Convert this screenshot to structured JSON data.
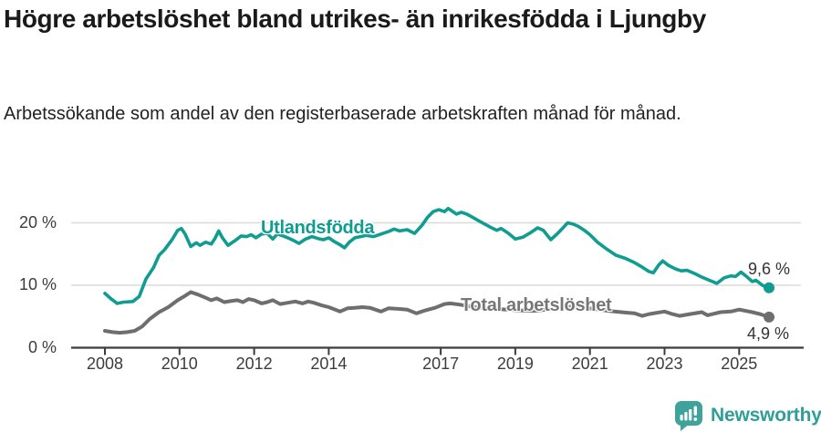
{
  "header": {
    "title": "Högre arbetslöshet bland utrikes- än inrikesfödda i Ljungby",
    "subtitle": "Arbetssökande som andel av den registerbaserade arbetskraften månad för månad."
  },
  "colors": {
    "accent_teal": "#0f9c91",
    "line_gray": "#6e6e6e",
    "series_label_gray": "#767676",
    "axis": "#3c3c3c",
    "grid": "#dadada",
    "title_text": "#1a1a1a",
    "logo_teal": "#2f9e96"
  },
  "branding": {
    "logo_text": "Newsworthy",
    "logo_icon": "speech-bubble-with-bar-chart-and-exclamation"
  },
  "chart_data": {
    "type": "line",
    "title": "Högre arbetslöshet bland utrikes- än inrikesfödda i Ljungby",
    "subtitle": "Arbetssökande som andel av den registerbaserade arbetskraften månad för månad.",
    "xlabel": "",
    "ylabel": "",
    "x_unit": "year",
    "y_unit": "%",
    "xlim": [
      2007.1,
      2026.65
    ],
    "ylim": [
      0,
      23
    ],
    "grid": "horizontal",
    "y_ticks": [
      0,
      10,
      20
    ],
    "y_tick_labels": [
      "0 %",
      "10 %",
      "20 %"
    ],
    "x_ticks": [
      2008,
      2010,
      2012,
      2014,
      2017,
      2019,
      2021,
      2023,
      2025
    ],
    "x_tick_labels": [
      "2008",
      "2010",
      "2012",
      "2014",
      "2017",
      "2019",
      "2021",
      "2023",
      "2025"
    ],
    "series": [
      {
        "name": "Utlandsfödda",
        "color": "#0f9c91",
        "width": 3.6,
        "end_label": "9,6 %",
        "end_value": 9.6,
        "points": [
          [
            2008.0,
            8.7
          ],
          [
            2008.17,
            7.8
          ],
          [
            2008.33,
            7.1
          ],
          [
            2008.5,
            7.3
          ],
          [
            2008.75,
            7.4
          ],
          [
            2008.92,
            8.2
          ],
          [
            2009.1,
            11.0
          ],
          [
            2009.3,
            12.8
          ],
          [
            2009.45,
            14.8
          ],
          [
            2009.6,
            15.7
          ],
          [
            2009.8,
            17.3
          ],
          [
            2009.95,
            18.8
          ],
          [
            2010.05,
            19.1
          ],
          [
            2010.15,
            18.2
          ],
          [
            2010.3,
            16.2
          ],
          [
            2010.45,
            16.8
          ],
          [
            2010.55,
            16.4
          ],
          [
            2010.7,
            16.9
          ],
          [
            2010.85,
            16.6
          ],
          [
            2010.95,
            17.5
          ],
          [
            2011.05,
            18.7
          ],
          [
            2011.15,
            17.6
          ],
          [
            2011.3,
            16.4
          ],
          [
            2011.5,
            17.2
          ],
          [
            2011.65,
            17.9
          ],
          [
            2011.8,
            17.8
          ],
          [
            2011.92,
            18.1
          ],
          [
            2012.05,
            17.6
          ],
          [
            2012.2,
            18.2
          ],
          [
            2012.35,
            18.3
          ],
          [
            2012.5,
            17.4
          ],
          [
            2012.62,
            18.2
          ],
          [
            2012.78,
            17.9
          ],
          [
            2012.9,
            17.6
          ],
          [
            2013.05,
            17.2
          ],
          [
            2013.2,
            16.7
          ],
          [
            2013.38,
            17.4
          ],
          [
            2013.55,
            17.8
          ],
          [
            2013.7,
            17.5
          ],
          [
            2013.85,
            17.3
          ],
          [
            2014.0,
            17.6
          ],
          [
            2014.15,
            17.0
          ],
          [
            2014.3,
            16.5
          ],
          [
            2014.42,
            16.0
          ],
          [
            2014.55,
            16.9
          ],
          [
            2014.7,
            17.6
          ],
          [
            2014.85,
            17.8
          ],
          [
            2015.0,
            18.0
          ],
          [
            2015.2,
            17.8
          ],
          [
            2015.4,
            18.2
          ],
          [
            2015.6,
            18.6
          ],
          [
            2015.75,
            19.0
          ],
          [
            2015.9,
            18.7
          ],
          [
            2016.1,
            18.9
          ],
          [
            2016.3,
            18.3
          ],
          [
            2016.5,
            19.6
          ],
          [
            2016.65,
            20.9
          ],
          [
            2016.8,
            21.8
          ],
          [
            2016.95,
            22.1
          ],
          [
            2017.1,
            21.8
          ],
          [
            2017.2,
            22.3
          ],
          [
            2017.3,
            21.9
          ],
          [
            2017.42,
            21.4
          ],
          [
            2017.55,
            21.7
          ],
          [
            2017.7,
            21.4
          ],
          [
            2017.85,
            20.9
          ],
          [
            2018.0,
            20.4
          ],
          [
            2018.15,
            19.9
          ],
          [
            2018.3,
            19.4
          ],
          [
            2018.5,
            18.8
          ],
          [
            2018.62,
            19.1
          ],
          [
            2018.8,
            18.4
          ],
          [
            2019.0,
            17.4
          ],
          [
            2019.2,
            17.7
          ],
          [
            2019.4,
            18.4
          ],
          [
            2019.6,
            19.2
          ],
          [
            2019.75,
            18.8
          ],
          [
            2019.95,
            17.3
          ],
          [
            2020.1,
            18.1
          ],
          [
            2020.25,
            19.0
          ],
          [
            2020.4,
            20.0
          ],
          [
            2020.55,
            19.8
          ],
          [
            2020.7,
            19.4
          ],
          [
            2020.85,
            18.8
          ],
          [
            2021.0,
            18.1
          ],
          [
            2021.2,
            16.9
          ],
          [
            2021.45,
            15.8
          ],
          [
            2021.7,
            14.8
          ],
          [
            2021.95,
            14.3
          ],
          [
            2022.2,
            13.6
          ],
          [
            2022.4,
            12.9
          ],
          [
            2022.58,
            12.2
          ],
          [
            2022.7,
            12.0
          ],
          [
            2022.85,
            13.3
          ],
          [
            2022.95,
            13.9
          ],
          [
            2023.1,
            13.2
          ],
          [
            2023.3,
            12.6
          ],
          [
            2023.45,
            12.3
          ],
          [
            2023.6,
            12.4
          ],
          [
            2023.8,
            11.9
          ],
          [
            2024.0,
            11.3
          ],
          [
            2024.2,
            10.8
          ],
          [
            2024.4,
            10.3
          ],
          [
            2024.6,
            11.2
          ],
          [
            2024.78,
            11.5
          ],
          [
            2024.9,
            11.4
          ],
          [
            2025.05,
            12.1
          ],
          [
            2025.2,
            11.4
          ],
          [
            2025.35,
            10.6
          ],
          [
            2025.45,
            10.8
          ],
          [
            2025.62,
            10.0
          ],
          [
            2025.8,
            9.6
          ]
        ]
      },
      {
        "name": "Total arbetslöshet",
        "color": "#6e6e6e",
        "width": 4,
        "end_label": "4,9 %",
        "end_value": 4.9,
        "points": [
          [
            2008.0,
            2.7
          ],
          [
            2008.2,
            2.5
          ],
          [
            2008.4,
            2.4
          ],
          [
            2008.6,
            2.5
          ],
          [
            2008.8,
            2.7
          ],
          [
            2009.0,
            3.4
          ],
          [
            2009.2,
            4.6
          ],
          [
            2009.45,
            5.7
          ],
          [
            2009.7,
            6.5
          ],
          [
            2009.95,
            7.6
          ],
          [
            2010.15,
            8.3
          ],
          [
            2010.3,
            8.9
          ],
          [
            2010.5,
            8.5
          ],
          [
            2010.7,
            8.0
          ],
          [
            2010.85,
            7.6
          ],
          [
            2011.0,
            7.9
          ],
          [
            2011.2,
            7.3
          ],
          [
            2011.4,
            7.5
          ],
          [
            2011.55,
            7.6
          ],
          [
            2011.7,
            7.3
          ],
          [
            2011.85,
            7.8
          ],
          [
            2012.0,
            7.6
          ],
          [
            2012.2,
            7.1
          ],
          [
            2012.35,
            7.3
          ],
          [
            2012.5,
            7.6
          ],
          [
            2012.7,
            7.0
          ],
          [
            2012.9,
            7.2
          ],
          [
            2013.1,
            7.4
          ],
          [
            2013.3,
            7.1
          ],
          [
            2013.45,
            7.4
          ],
          [
            2013.6,
            7.2
          ],
          [
            2013.8,
            6.8
          ],
          [
            2014.0,
            6.5
          ],
          [
            2014.3,
            5.8
          ],
          [
            2014.5,
            6.3
          ],
          [
            2014.7,
            6.4
          ],
          [
            2014.9,
            6.5
          ],
          [
            2015.1,
            6.4
          ],
          [
            2015.4,
            5.8
          ],
          [
            2015.6,
            6.3
          ],
          [
            2015.9,
            6.2
          ],
          [
            2016.1,
            6.1
          ],
          [
            2016.35,
            5.5
          ],
          [
            2016.6,
            6.0
          ],
          [
            2016.85,
            6.4
          ],
          [
            2017.1,
            7.0
          ],
          [
            2017.25,
            7.1
          ],
          [
            2017.5,
            6.9
          ],
          [
            2017.8,
            6.6
          ],
          [
            2018.1,
            6.4
          ],
          [
            2018.5,
            6.2
          ],
          [
            2019.0,
            6.0
          ],
          [
            2019.5,
            5.9
          ],
          [
            2020.0,
            6.2
          ],
          [
            2020.5,
            6.6
          ],
          [
            2021.0,
            6.3
          ],
          [
            2021.5,
            5.9
          ],
          [
            2022.0,
            5.6
          ],
          [
            2022.2,
            5.5
          ],
          [
            2022.4,
            5.1
          ],
          [
            2022.6,
            5.4
          ],
          [
            2023.0,
            5.8
          ],
          [
            2023.2,
            5.4
          ],
          [
            2023.4,
            5.1
          ],
          [
            2023.7,
            5.4
          ],
          [
            2024.0,
            5.7
          ],
          [
            2024.15,
            5.2
          ],
          [
            2024.5,
            5.7
          ],
          [
            2024.78,
            5.8
          ],
          [
            2025.0,
            6.1
          ],
          [
            2025.35,
            5.7
          ],
          [
            2025.55,
            5.4
          ],
          [
            2025.8,
            4.9
          ]
        ]
      }
    ],
    "legend_position": "inline-labels-on-lines"
  }
}
